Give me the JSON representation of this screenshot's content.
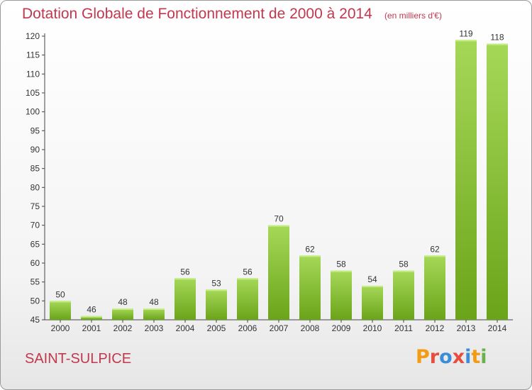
{
  "header": {
    "title": "Dotation Globale de Fonctionnement de 2000 à 2014",
    "unit": "(en milliers d'€)"
  },
  "footer": {
    "commune": "SAINT-SULPICE",
    "logo": "Proxiti"
  },
  "colors": {
    "title": "#c1384e",
    "bar_light": "#a6d858",
    "bar_dark": "#6aa41a",
    "logo_letters": [
      "#f39c12",
      "#e74c3c",
      "#3c8dd8",
      "#e74c3c",
      "#3c8dd8",
      "#f39c12",
      "#6ab04c"
    ]
  },
  "chart_data": {
    "type": "bar",
    "title": "Dotation Globale de Fonctionnement de 2000 à 2014",
    "subtitle": "(en milliers d'€)",
    "categories": [
      "2000",
      "2001",
      "2002",
      "2003",
      "2004",
      "2005",
      "2006",
      "2007",
      "2008",
      "2009",
      "2010",
      "2011",
      "2012",
      "2013",
      "2014"
    ],
    "values": [
      50,
      46,
      48,
      48,
      56,
      53,
      56,
      70,
      62,
      58,
      54,
      58,
      62,
      119,
      118
    ],
    "ylim": [
      45,
      120
    ],
    "yticks": [
      45,
      50,
      55,
      60,
      65,
      70,
      75,
      80,
      85,
      90,
      95,
      100,
      105,
      110,
      115,
      120
    ],
    "grid": false,
    "legend": "none"
  }
}
